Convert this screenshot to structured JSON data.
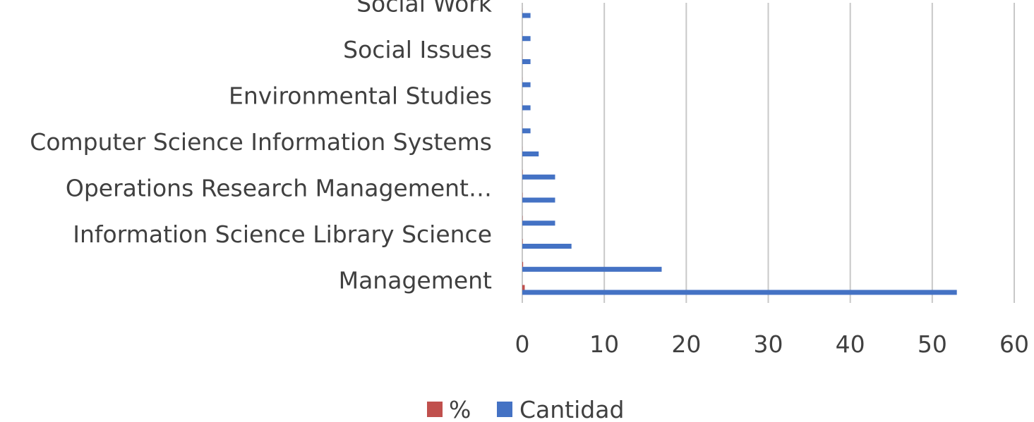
{
  "chart_data": {
    "type": "bar",
    "orientation": "horizontal",
    "categories": [
      "Management",
      "",
      "Information Science Library Science",
      "",
      "Operations Research Management…",
      "",
      "Computer Science Information Systems",
      "",
      "Environmental Studies",
      "",
      "Social Issues",
      "",
      "Social Work"
    ],
    "series": [
      {
        "name": "Cantidad",
        "color": "#4472C4",
        "values": [
          53,
          17,
          6,
          4,
          4,
          4,
          2,
          1,
          1,
          1,
          1,
          1,
          1
        ]
      },
      {
        "name": "%",
        "color": "#C0504D",
        "values": [
          0.3,
          0.1,
          0.04,
          0.03,
          0.03,
          0.03,
          0.01,
          0.01,
          0.01,
          0.01,
          0.01,
          0.01,
          0.01
        ]
      }
    ],
    "xlim": [
      0,
      60
    ],
    "xticks": [
      "0",
      "10",
      "20",
      "30",
      "40",
      "50",
      "60"
    ],
    "grid": true,
    "legend_position": "bottom",
    "legend": [
      "%",
      "Cantidad"
    ]
  }
}
